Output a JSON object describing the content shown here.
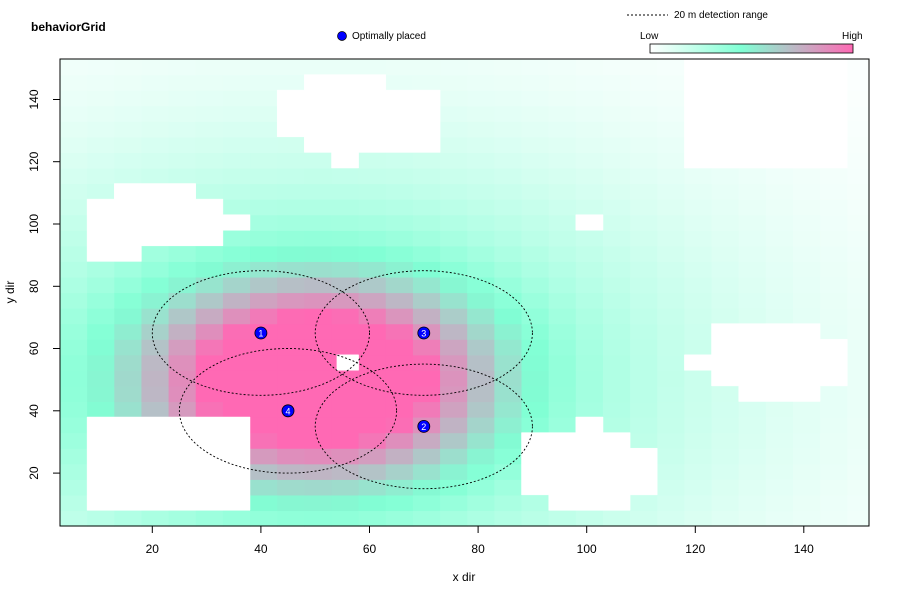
{
  "title": "behaviorGrid",
  "legend": {
    "receiver_label": "Optimally placed",
    "range_label": "20 m detection range",
    "color_low": "Low",
    "color_high": "High",
    "range_line": "dashed"
  },
  "colors": {
    "low": "#ffffff",
    "mid": "#80ffd4",
    "high": "#ff69b4",
    "receiver": "#0000ff",
    "land": "#ffffff"
  },
  "chart_data": {
    "type": "heatmap",
    "title": "behaviorGrid",
    "xlabel": "x dir",
    "ylabel": "y dir",
    "xlim": [
      3,
      152
    ],
    "ylim": [
      3,
      153
    ],
    "x_ticks": [
      20,
      40,
      60,
      80,
      100,
      120,
      140
    ],
    "y_ticks": [
      20,
      40,
      60,
      80,
      100,
      120,
      140
    ],
    "grid": false,
    "color_scale": [
      "Low",
      "High"
    ],
    "hotspot": {
      "x": 50,
      "y": 50,
      "value": "High"
    },
    "receivers": [
      {
        "id": "1",
        "x": 40,
        "y": 65
      },
      {
        "id": "2",
        "x": 70,
        "y": 35
      },
      {
        "id": "3",
        "x": 70,
        "y": 65
      },
      {
        "id": "4",
        "x": 45,
        "y": 40
      }
    ],
    "detection_range_m": 20,
    "land_areas": [
      [
        [
          8,
          8
        ],
        [
          38,
          8
        ],
        [
          38,
          38
        ],
        [
          8,
          38
        ]
      ],
      [
        [
          8,
          88
        ],
        [
          18,
          88
        ],
        [
          18,
          93
        ],
        [
          33,
          93
        ],
        [
          33,
          98
        ],
        [
          38,
          98
        ],
        [
          38,
          103
        ],
        [
          33,
          103
        ],
        [
          33,
          108
        ],
        [
          28,
          108
        ],
        [
          28,
          113
        ],
        [
          13,
          113
        ],
        [
          13,
          108
        ],
        [
          8,
          108
        ]
      ],
      [
        [
          53,
          118
        ],
        [
          58,
          118
        ],
        [
          58,
          123
        ],
        [
          73,
          123
        ],
        [
          73,
          143
        ],
        [
          63,
          143
        ],
        [
          63,
          148
        ],
        [
          48,
          148
        ],
        [
          48,
          143
        ],
        [
          43,
          143
        ],
        [
          43,
          128
        ],
        [
          48,
          128
        ],
        [
          48,
          123
        ],
        [
          53,
          123
        ]
      ],
      [
        [
          54,
          53
        ],
        [
          58,
          53
        ],
        [
          58,
          58
        ],
        [
          54,
          58
        ]
      ],
      [
        [
          98,
          98
        ],
        [
          103,
          98
        ],
        [
          103,
          103
        ],
        [
          98,
          103
        ]
      ],
      [
        [
          88,
          13
        ],
        [
          93,
          13
        ],
        [
          93,
          8
        ],
        [
          108,
          8
        ],
        [
          108,
          13
        ],
        [
          113,
          13
        ],
        [
          113,
          28
        ],
        [
          108,
          28
        ],
        [
          108,
          33
        ],
        [
          103,
          33
        ],
        [
          103,
          38
        ],
        [
          98,
          38
        ],
        [
          98,
          33
        ],
        [
          88,
          33
        ]
      ],
      [
        [
          118,
          53
        ],
        [
          123,
          53
        ],
        [
          123,
          48
        ],
        [
          128,
          48
        ],
        [
          128,
          43
        ],
        [
          143,
          43
        ],
        [
          143,
          48
        ],
        [
          148,
          48
        ],
        [
          148,
          63
        ],
        [
          143,
          63
        ],
        [
          143,
          68
        ],
        [
          123,
          68
        ],
        [
          123,
          58
        ],
        [
          118,
          58
        ]
      ],
      [
        [
          118,
          118
        ],
        [
          148,
          118
        ],
        [
          148,
          153
        ],
        [
          118,
          153
        ]
      ]
    ]
  }
}
